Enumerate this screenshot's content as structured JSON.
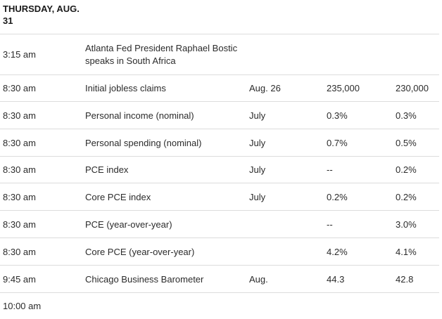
{
  "day": {
    "line1": "THURSDAY, AUG.",
    "line2": "31"
  },
  "rows": [
    {
      "time": "3:15 am",
      "event_line1": "Atlanta Fed President Raphael Bostic",
      "event_line2": "speaks in South Africa",
      "period": "",
      "actual": "",
      "forecast": ""
    },
    {
      "time": "8:30 am",
      "event": "Initial jobless claims",
      "period": "Aug. 26",
      "actual": "235,000",
      "forecast": "230,000"
    },
    {
      "time": "8:30 am",
      "event": "Personal income (nominal)",
      "period": "July",
      "actual": "0.3%",
      "forecast": "0.3%"
    },
    {
      "time": "8:30 am",
      "event": "Personal spending (nominal)",
      "period": "July",
      "actual": "0.7%",
      "forecast": "0.5%"
    },
    {
      "time": "8:30 am",
      "event": "PCE index",
      "period": "July",
      "actual": "--",
      "forecast": "0.2%"
    },
    {
      "time": "8:30 am",
      "event": "Core PCE index",
      "period": "July",
      "actual": "0.2%",
      "forecast": "0.2%"
    },
    {
      "time": "8:30 am",
      "event": "PCE (year-over-year)",
      "period": "",
      "actual": "--",
      "forecast": "3.0%"
    },
    {
      "time": "8:30 am",
      "event": "Core PCE (year-over-year)",
      "period": "",
      "actual": "4.2%",
      "forecast": "4.1%"
    },
    {
      "time": "9:45 am",
      "event": "Chicago Business Barometer",
      "period": "Aug.",
      "actual": "44.3",
      "forecast": "42.8"
    },
    {
      "time": "10:00 am",
      "event": "",
      "period": "",
      "actual": "",
      "forecast": ""
    }
  ]
}
